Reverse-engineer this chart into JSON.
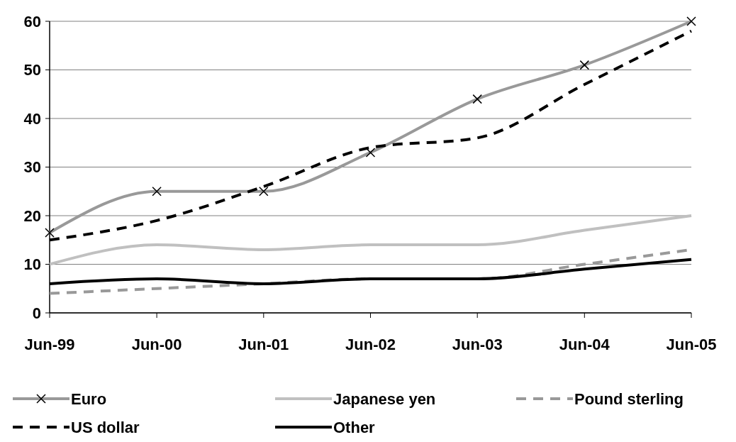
{
  "chart_data": {
    "type": "line",
    "x": [
      "1999-06",
      "2000-06",
      "2001-06",
      "2002-06",
      "2003-06",
      "2004-06",
      "2005-06"
    ],
    "series": [
      {
        "name": "Euro",
        "color": "#999999",
        "values": [
          16.5,
          25,
          25,
          33,
          44,
          51,
          60
        ],
        "marker": "cross",
        "line_style": "solid"
      },
      {
        "name": "Japanese yen",
        "color": "#c0c0c0",
        "values": [
          10,
          14,
          13,
          14,
          14,
          17,
          20
        ],
        "line_style": "solid"
      },
      {
        "name": "Pound sterling",
        "color": "#999999",
        "values": [
          4,
          5,
          6,
          7,
          7,
          10,
          13
        ],
        "line_style": "dashed"
      },
      {
        "name": "US dollar",
        "color": "#000000",
        "values": [
          15,
          19,
          26,
          34,
          36,
          47,
          58
        ],
        "line_style": "dashed"
      },
      {
        "name": "Other",
        "color": "#000000",
        "values": [
          6,
          7,
          6,
          7,
          7,
          9,
          11
        ],
        "line_style": "solid"
      }
    ],
    "xlim": [
      "1999-06",
      "2005-06"
    ],
    "xticks": [
      {
        "value": "1999-06",
        "label": "Jun-99"
      },
      {
        "value": "2000-06",
        "label": "Jun-00"
      },
      {
        "value": "2001-06",
        "label": "Jun-01"
      },
      {
        "value": "2002-06",
        "label": "Jun-02"
      },
      {
        "value": "2003-06",
        "label": "Jun-03"
      },
      {
        "value": "2004-06",
        "label": "Jun-04"
      },
      {
        "value": "2005-06",
        "label": "Jun-05"
      }
    ],
    "ylim": [
      0,
      60
    ],
    "yticks": [
      0,
      10,
      20,
      30,
      40,
      50,
      60
    ],
    "grid": "y",
    "legend": "bottom"
  }
}
